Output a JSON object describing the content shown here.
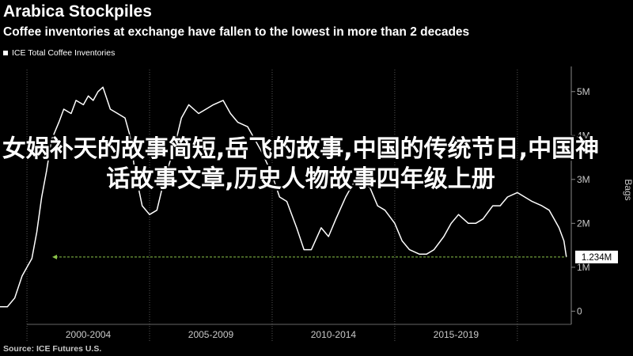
{
  "header": {
    "title": "Arabica Stockpiles",
    "subtitle": "Coffee inventories at exchange have fallen to the lowest in more than 2 decades"
  },
  "footer": {
    "source": "Source: ICE Futures U.S."
  },
  "overlay_text": "女娲补天的故事简短,岳飞的故事,中国的传统节日,中国神话故事文章,历史人物故事四年级上册",
  "colors": {
    "background": "#000000",
    "series": "#ffffff",
    "reference_line": "#8bc34a",
    "axis": "#b0b0b0"
  },
  "chart_data": {
    "type": "line",
    "title": "Arabica Stockpiles",
    "subtitle": "Coffee inventories at exchange have fallen to the lowest in more than 2 decades",
    "xlabel": "",
    "ylabel": "Bags",
    "xlim": [
      1998.9,
      2022.2
    ],
    "ylim": [
      -0.3,
      5.5
    ],
    "y_ticks": [
      0,
      1,
      2,
      3,
      4,
      5
    ],
    "y_tick_labels": [
      "0",
      "1M",
      "2M",
      "3M",
      "4M",
      "5M"
    ],
    "x_period_labels": [
      "2000-2004",
      "2005-2009",
      "2010-2014",
      "2015-2019"
    ],
    "x_period_ranges": [
      [
        2000,
        2005
      ],
      [
        2005,
        2010
      ],
      [
        2010,
        2015
      ],
      [
        2015,
        2020
      ]
    ],
    "x_dividers": [
      2000,
      2005,
      2010,
      2015,
      2020
    ],
    "legend": {
      "position": "top-left",
      "entries": [
        "ICE Total Coffee Inventories"
      ]
    },
    "last_value": 1.234,
    "last_value_label": "1.234M",
    "series": [
      {
        "name": "ICE Total Coffee Inventories",
        "x": [
          1998.9,
          1999.2,
          1999.5,
          1999.8,
          2000.0,
          2000.2,
          2000.4,
          2000.6,
          2000.8,
          2001.0,
          2001.3,
          2001.5,
          2001.8,
          2002.0,
          2002.3,
          2002.5,
          2002.7,
          2002.9,
          2003.1,
          2003.4,
          2003.7,
          2004.0,
          2004.2,
          2004.4,
          2004.7,
          2005.0,
          2005.3,
          2005.6,
          2006.0,
          2006.3,
          2006.6,
          2007.0,
          2007.3,
          2007.6,
          2008.0,
          2008.3,
          2008.6,
          2009.0,
          2009.3,
          2009.6,
          2010.0,
          2010.3,
          2010.6,
          2011.0,
          2011.3,
          2011.6,
          2012.0,
          2012.3,
          2012.6,
          2013.0,
          2013.3,
          2013.6,
          2014.0,
          2014.3,
          2014.6,
          2015.0,
          2015.3,
          2015.6,
          2016.0,
          2016.3,
          2016.6,
          2017.0,
          2017.3,
          2017.6,
          2018.0,
          2018.3,
          2018.6,
          2019.0,
          2019.3,
          2019.6,
          2020.0,
          2020.3,
          2020.6,
          2021.0,
          2021.3,
          2021.5,
          2021.7,
          2021.9,
          2022.0
        ],
        "values": [
          0.1,
          0.1,
          0.3,
          0.8,
          1.0,
          1.2,
          1.8,
          2.6,
          3.2,
          3.9,
          4.3,
          4.6,
          4.5,
          4.8,
          4.7,
          4.9,
          4.8,
          5.0,
          5.1,
          4.6,
          4.5,
          4.4,
          4.0,
          3.2,
          2.4,
          2.2,
          2.3,
          3.0,
          3.7,
          4.4,
          4.7,
          4.5,
          4.6,
          4.7,
          4.8,
          4.5,
          4.3,
          4.2,
          3.9,
          3.6,
          3.1,
          2.6,
          2.5,
          1.9,
          1.4,
          1.4,
          1.9,
          1.7,
          2.1,
          2.6,
          2.9,
          3.0,
          2.8,
          2.4,
          2.3,
          2.0,
          1.6,
          1.4,
          1.3,
          1.3,
          1.4,
          1.7,
          2.0,
          2.2,
          2.0,
          2.0,
          2.1,
          2.4,
          2.4,
          2.6,
          2.7,
          2.6,
          2.5,
          2.4,
          2.3,
          2.1,
          1.9,
          1.6,
          1.234
        ]
      }
    ]
  }
}
